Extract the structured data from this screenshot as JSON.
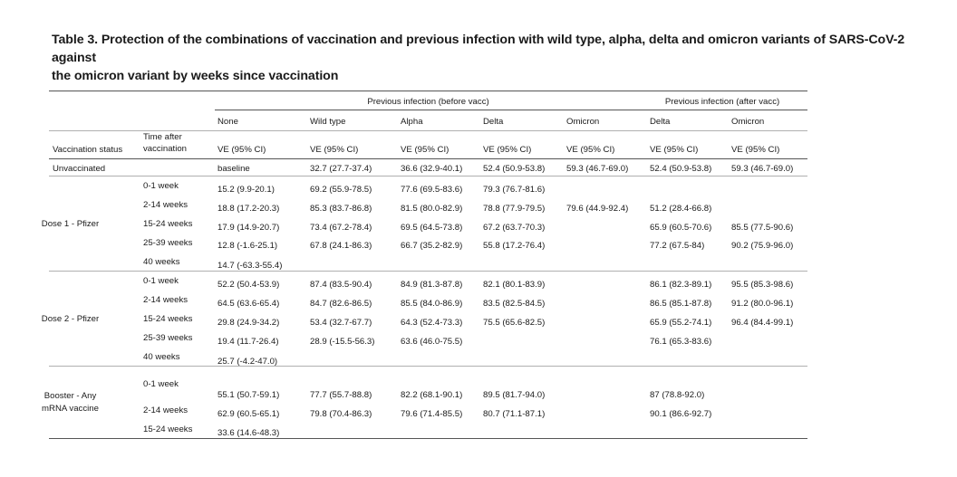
{
  "caption": {
    "line1": "Table 3. Protection of the combinations of vaccination and previous infection with wild type, alpha, delta and omicron variants of SARS-CoV-2 against",
    "line2": "the omicron variant by weeks since vaccination"
  },
  "table": {
    "group_headers": {
      "before": "Previous infection (before vacc)",
      "after": "Previous infection (after vacc)"
    },
    "column_headers": [
      "None",
      "Wild type",
      "Alpha",
      "Delta",
      "Omicron",
      "Delta",
      "Omicron"
    ],
    "status_header": "Vaccination status",
    "time_header_line1": "Time after",
    "time_header_line2": "vaccination",
    "metric_header": "VE (95% CI)",
    "unvaccinated": {
      "label": "Unvaccinated",
      "values": [
        "baseline",
        "32.7 (27.7-37.4)",
        "36.6 (32.9-40.1)",
        "52.4 (50.9-53.8)",
        "59.3 (46.7-69.0)",
        "52.4 (50.9-53.8)",
        "59.3 (46.7-69.0)"
      ]
    },
    "groups": [
      {
        "label_line1": "Dose 1 - Pfizer",
        "label_line2": "",
        "rows": [
          {
            "time": "0-1 week",
            "values": [
              "15.2 (9.9-20.1)",
              "69.2 (55.9-78.5)",
              "77.6 (69.5-83.6)",
              "79.3 (76.7-81.6)",
              "",
              "",
              ""
            ]
          },
          {
            "time": "2-14 weeks",
            "values": [
              "18.8 (17.2-20.3)",
              "85.3 (83.7-86.8)",
              "81.5 (80.0-82.9)",
              "78.8 (77.9-79.5)",
              "79.6 (44.9-92.4)",
              "51.2 (28.4-66.8)",
              ""
            ]
          },
          {
            "time": "15-24 weeks",
            "values": [
              "17.9 (14.9-20.7)",
              "73.4 (67.2-78.4)",
              "69.5 (64.5-73.8)",
              "67.2 (63.7-70.3)",
              "",
              "65.9 (60.5-70.6)",
              "85.5 (77.5-90.6)"
            ]
          },
          {
            "time": "25-39 weeks",
            "values": [
              "12.8 (-1.6-25.1)",
              "67.8 (24.1-86.3)",
              "66.7 (35.2-82.9)",
              "55.8 (17.2-76.4)",
              "",
              "77.2 (67.5-84)",
              "90.2 (75.9-96.0)"
            ]
          },
          {
            "time": "40 weeks",
            "values": [
              "14.7 (-63.3-55.4)",
              "",
              "",
              "",
              "",
              "",
              ""
            ]
          }
        ]
      },
      {
        "label_line1": "Dose 2 - Pfizer",
        "label_line2": "",
        "rows": [
          {
            "time": "0-1 week",
            "values": [
              "52.2 (50.4-53.9)",
              "87.4 (83.5-90.4)",
              "84.9 (81.3-87.8)",
              "82.1 (80.1-83.9)",
              "",
              "86.1 (82.3-89.1)",
              "95.5 (85.3-98.6)"
            ]
          },
          {
            "time": "2-14 weeks",
            "values": [
              "64.5 (63.6-65.4)",
              "84.7 (82.6-86.5)",
              "85.5 (84.0-86.9)",
              "83.5 (82.5-84.5)",
              "",
              "86.5 (85.1-87.8)",
              "91.2 (80.0-96.1)"
            ]
          },
          {
            "time": "15-24 weeks",
            "values": [
              "29.8 (24.9-34.2)",
              "53.4 (32.7-67.7)",
              "64.3 (52.4-73.3)",
              "75.5 (65.6-82.5)",
              "",
              "65.9 (55.2-74.1)",
              "96.4 (84.4-99.1)"
            ]
          },
          {
            "time": "25-39 weeks",
            "values": [
              "19.4 (11.7-26.4)",
              "28.9 (-15.5-56.3)",
              "63.6 (46.0-75.5)",
              "",
              "",
              "76.1 (65.3-83.6)",
              ""
            ]
          },
          {
            "time": "40 weeks",
            "values": [
              "25.7 (-4.2-47.0)",
              "",
              "",
              "",
              "",
              "",
              ""
            ]
          }
        ]
      },
      {
        "label_line1": "Booster - Any",
        "label_line2": "mRNA vaccine",
        "rows": [
          {
            "time": "0-1 week",
            "values": [
              "55.1 (50.7-59.1)",
              "77.7 (55.7-88.8)",
              "82.2 (68.1-90.1)",
              "89.5 (81.7-94.0)",
              "",
              "87 (78.8-92.0)",
              ""
            ]
          },
          {
            "time": "2-14 weeks",
            "values": [
              "62.9 (60.5-65.1)",
              "79.8 (70.4-86.3)",
              "79.6 (71.4-85.5)",
              "80.7 (71.1-87.1)",
              "",
              "90.1 (86.6-92.7)",
              ""
            ]
          },
          {
            "time": "15-24 weeks",
            "values": [
              "33.6 (14.6-48.3)",
              "",
              "",
              "",
              "",
              "",
              ""
            ]
          }
        ]
      }
    ]
  }
}
